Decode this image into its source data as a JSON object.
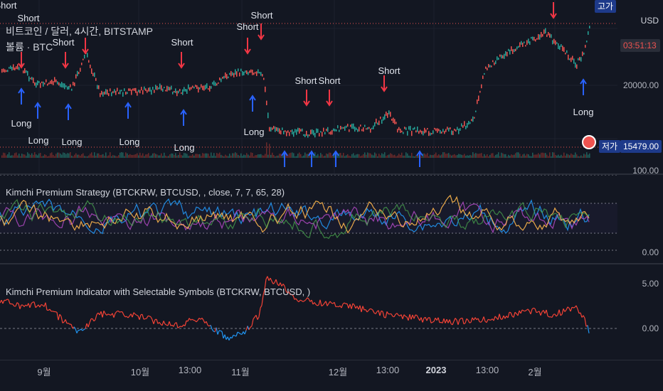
{
  "top_pane": {
    "title": "비트코인 / 달러, 4시간, BITSTAMP",
    "subtitle": "볼륨 · BTC",
    "short_label": "Short",
    "long_label": "Long",
    "high_label": "고가",
    "low_label": "저가",
    "currency": "USD",
    "countdown": "03:51:13",
    "axis_tick": "20000.00",
    "low_value": "15479.00"
  },
  "strategy_pane": {
    "title": "Kimchi Premium Strategy (BTCKRW, BTCUSD, , close, 7, 7, 65, 28)",
    "axis_top": "100.00",
    "axis_bottom": "0.00"
  },
  "indicator_pane": {
    "title": "Kimchi Premium Indicator with Selectable Symbols (BTCKRW, BTCUSD, )",
    "axis_top": "5.00",
    "axis_zero": "0.00"
  },
  "time_axis": [
    "9월",
    "10월",
    "13:00",
    "11월",
    "12월",
    "13:00",
    "2023",
    "13:00",
    "2월"
  ],
  "colors": {
    "background": "#131722",
    "up": "#26a69a",
    "down": "#ef5350",
    "short_arrow": "#f23645",
    "long_arrow": "#2962ff",
    "premium_pos": "#f44336",
    "premium_neg": "#2196f3"
  }
}
